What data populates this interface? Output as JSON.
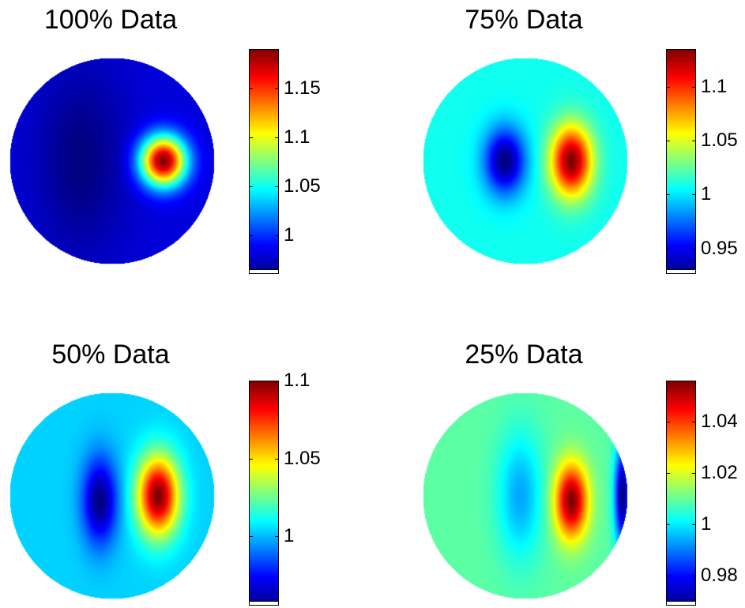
{
  "chart_data": [
    {
      "type": "heatmap",
      "title": "100% Data",
      "shape": "disk",
      "colormap": "jet",
      "colorbar": {
        "range": [
          0.965,
          1.19
        ],
        "ticks": [
          1,
          1.05,
          1.1,
          1.15
        ],
        "tick_labels": [
          "1",
          "1.05",
          "1.1",
          "1.15"
        ]
      },
      "hotspots": [
        {
          "kind": "max",
          "center": [
            0.5,
            0.0
          ],
          "spread": [
            0.22,
            0.24
          ],
          "value": 1.19
        },
        {
          "kind": "min",
          "center": [
            -0.3,
            0.0
          ],
          "spread": [
            0.45,
            0.9
          ],
          "value": 0.965
        }
      ],
      "base": 0.985
    },
    {
      "type": "heatmap",
      "title": "75% Data",
      "shape": "disk",
      "colormap": "jet",
      "colorbar": {
        "range": [
          0.93,
          1.135
        ],
        "ticks": [
          0.95,
          1,
          1.05,
          1.1
        ],
        "tick_labels": [
          "0.95",
          "1",
          "1.05",
          "1.1"
        ]
      },
      "hotspots": [
        {
          "kind": "max",
          "center": [
            0.45,
            0.0
          ],
          "spread": [
            0.2,
            0.34
          ],
          "value": 1.135
        },
        {
          "kind": "min",
          "center": [
            -0.2,
            0.0
          ],
          "spread": [
            0.2,
            0.32
          ],
          "value": 0.93
        }
      ],
      "base": 1.01
    },
    {
      "type": "heatmap",
      "title": "50% Data",
      "shape": "disk",
      "colormap": "jet",
      "colorbar": {
        "range": [
          0.958,
          1.1
        ],
        "ticks": [
          1,
          1.05,
          1.1
        ],
        "tick_labels": [
          "1",
          "1.05",
          "1.1"
        ]
      },
      "hotspots": [
        {
          "kind": "max",
          "center": [
            0.45,
            0.0
          ],
          "spread": [
            0.2,
            0.38
          ],
          "value": 1.1
        },
        {
          "kind": "min",
          "center": [
            -0.12,
            0.05
          ],
          "spread": [
            0.17,
            0.42
          ],
          "value": 0.958
        }
      ],
      "base": 1.005
    },
    {
      "type": "heatmap",
      "title": "25% Data",
      "shape": "disk",
      "colormap": "jet",
      "colorbar": {
        "range": [
          0.97,
          1.056
        ],
        "ticks": [
          0.98,
          1,
          1.02,
          1.04
        ],
        "tick_labels": [
          "0.98",
          "1",
          "1.02",
          "1.04"
        ]
      },
      "hotspots": [
        {
          "kind": "max",
          "center": [
            0.45,
            0.05
          ],
          "spread": [
            0.16,
            0.36
          ],
          "value": 1.056
        },
        {
          "kind": "min",
          "center": [
            0.95,
            0.0
          ],
          "spread": [
            0.08,
            0.5
          ],
          "value": 0.97
        },
        {
          "kind": "min",
          "center": [
            -0.05,
            0.0
          ],
          "spread": [
            0.22,
            0.6
          ],
          "value": 0.995
        }
      ],
      "base": 1.01
    }
  ]
}
